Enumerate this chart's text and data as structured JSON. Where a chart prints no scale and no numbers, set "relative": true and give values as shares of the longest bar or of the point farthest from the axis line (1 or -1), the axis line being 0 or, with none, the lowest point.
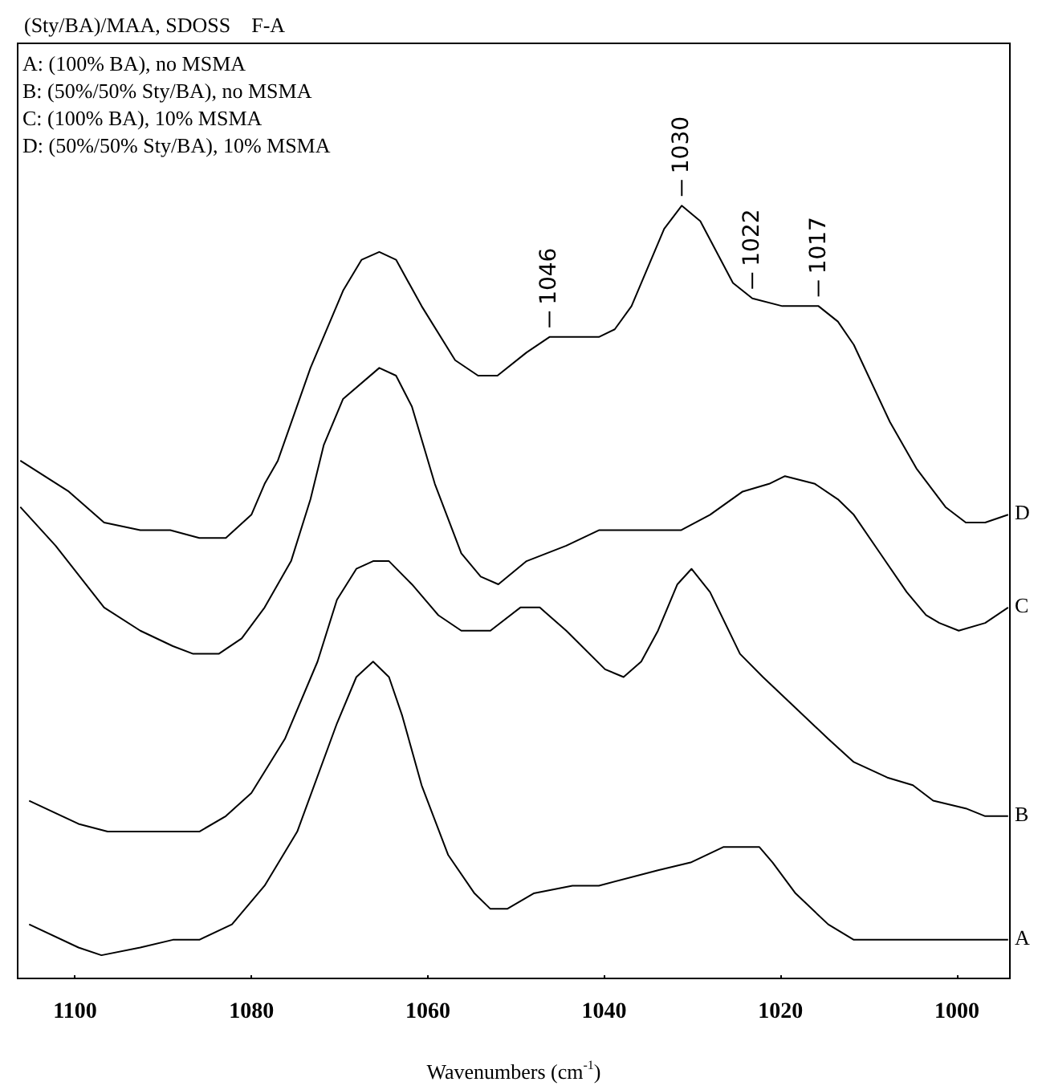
{
  "chart_data": {
    "type": "line",
    "relative": true,
    "title": "(Sty/BA)/MAA, SDOSS    F-A",
    "xlabel": "Wavenumbers (cm$^{-1}$)",
    "xlim": [
      1106.5,
      994
    ],
    "xticks": [
      1100,
      1080,
      1060,
      1040,
      1020,
      1000
    ],
    "grid": false,
    "legend": false,
    "marker": "none",
    "line_style": "solid",
    "annotations": [
      "A: (100% BA), no MSMA",
      "B: (50%/50% Sty/BA), no MSMA",
      "C: (100% BA), 10% MSMA",
      "D: (50%/50% Sty/BA), 10% MSMA",
      {
        "text": "1046",
        "x": 1046.2,
        "y": 0.83
      },
      {
        "text": "1030",
        "x": 1031.2,
        "y": 1.0
      },
      {
        "text": "1022",
        "x": 1023.2,
        "y": 0.88
      },
      {
        "text": "1017",
        "x": 1015.7,
        "y": 0.87
      }
    ],
    "series": [
      {
        "name": "A",
        "color": "#000000",
        "x": [
          1105.2,
          1099.6,
          1097.0,
          1092.6,
          1088.9,
          1085.9,
          1082.2,
          1078.5,
          1074.8,
          1070.3,
          1068.1,
          1066.2,
          1064.4,
          1062.9,
          1060.7,
          1057.7,
          1054.7,
          1052.9,
          1051.0,
          1048.0,
          1043.6,
          1040.6,
          1033.9,
          1030.2,
          1026.5,
          1022.4,
          1020.9,
          1018.3,
          1014.6,
          1011.7,
          1007.2,
          1002.7,
          996.8,
          994.2
        ],
        "values": [
          0.07,
          0.04,
          0.03,
          0.04,
          0.05,
          0.05,
          0.07,
          0.12,
          0.19,
          0.33,
          0.39,
          0.41,
          0.39,
          0.34,
          0.25,
          0.16,
          0.11,
          0.09,
          0.09,
          0.11,
          0.12,
          0.12,
          0.14,
          0.15,
          0.17,
          0.17,
          0.15,
          0.11,
          0.07,
          0.05,
          0.05,
          0.05,
          0.05,
          0.05
        ]
      },
      {
        "name": "B",
        "color": "#000000",
        "x": [
          1105.2,
          1099.6,
          1096.3,
          1091.8,
          1085.9,
          1082.9,
          1080.0,
          1076.2,
          1072.5,
          1070.3,
          1068.1,
          1066.2,
          1064.4,
          1061.8,
          1058.8,
          1056.2,
          1054.7,
          1052.9,
          1049.5,
          1047.3,
          1044.3,
          1039.9,
          1037.8,
          1035.8,
          1033.9,
          1031.7,
          1030.1,
          1028.0,
          1024.6,
          1022.0,
          1018.3,
          1014.6,
          1011.7,
          1007.9,
          1005.0,
          1002.7,
          999.0,
          996.8,
          994.2
        ],
        "values": [
          0.23,
          0.2,
          0.19,
          0.19,
          0.19,
          0.21,
          0.24,
          0.31,
          0.41,
          0.49,
          0.53,
          0.54,
          0.54,
          0.51,
          0.47,
          0.45,
          0.45,
          0.45,
          0.48,
          0.48,
          0.45,
          0.4,
          0.39,
          0.41,
          0.45,
          0.51,
          0.53,
          0.5,
          0.42,
          0.39,
          0.35,
          0.31,
          0.28,
          0.26,
          0.25,
          0.23,
          0.22,
          0.21,
          0.21
        ]
      },
      {
        "name": "C",
        "color": "#000000",
        "x": [
          1106.2,
          1102.2,
          1096.7,
          1092.6,
          1088.9,
          1086.6,
          1083.7,
          1081.1,
          1078.5,
          1075.5,
          1073.3,
          1071.8,
          1069.6,
          1065.5,
          1063.6,
          1061.8,
          1059.2,
          1056.2,
          1054.0,
          1052.0,
          1048.8,
          1044.3,
          1040.6,
          1036.9,
          1031.3,
          1028.0,
          1024.3,
          1021.3,
          1019.5,
          1016.1,
          1013.5,
          1011.7,
          1008.7,
          1005.7,
          1003.5,
          1002.0,
          999.8,
          996.8,
          994.2
        ],
        "values": [
          0.61,
          0.56,
          0.48,
          0.45,
          0.43,
          0.42,
          0.42,
          0.44,
          0.48,
          0.54,
          0.62,
          0.69,
          0.75,
          0.79,
          0.78,
          0.74,
          0.64,
          0.55,
          0.52,
          0.51,
          0.54,
          0.56,
          0.58,
          0.58,
          0.58,
          0.6,
          0.63,
          0.64,
          0.65,
          0.64,
          0.62,
          0.6,
          0.55,
          0.5,
          0.47,
          0.46,
          0.45,
          0.46,
          0.48
        ]
      },
      {
        "name": "D",
        "color": "#000000",
        "x": [
          1106.2,
          1100.7,
          1096.7,
          1092.6,
          1089.2,
          1085.9,
          1082.9,
          1080.0,
          1078.5,
          1077.0,
          1073.3,
          1069.6,
          1067.5,
          1065.5,
          1063.6,
          1060.7,
          1056.9,
          1054.3,
          1052.1,
          1048.8,
          1046.2,
          1040.6,
          1038.8,
          1036.9,
          1033.2,
          1031.2,
          1029.1,
          1025.4,
          1023.2,
          1019.8,
          1015.7,
          1013.5,
          1011.7,
          1007.6,
          1004.6,
          1001.3,
          999.0,
          996.8,
          994.2
        ],
        "values": [
          0.67,
          0.63,
          0.59,
          0.58,
          0.58,
          0.57,
          0.57,
          0.6,
          0.64,
          0.67,
          0.79,
          0.89,
          0.93,
          0.94,
          0.93,
          0.87,
          0.8,
          0.78,
          0.78,
          0.81,
          0.83,
          0.83,
          0.84,
          0.87,
          0.97,
          1.0,
          0.98,
          0.9,
          0.88,
          0.87,
          0.87,
          0.85,
          0.82,
          0.72,
          0.66,
          0.61,
          0.59,
          0.59,
          0.6
        ]
      }
    ]
  }
}
